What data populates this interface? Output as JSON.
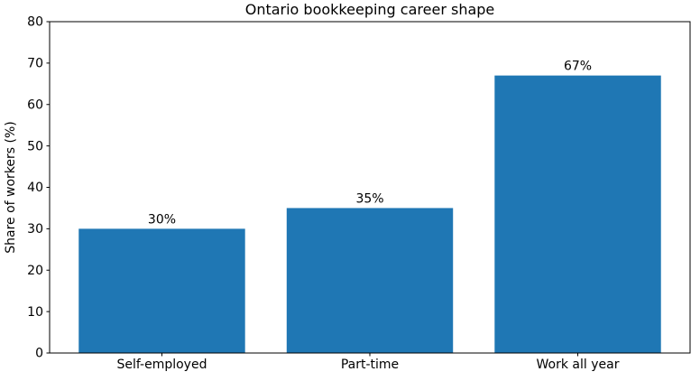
{
  "chart_data": {
    "type": "bar",
    "title": "Ontario bookkeeping career shape",
    "categories": [
      "Self-employed",
      "Part-time",
      "Work all year"
    ],
    "values": [
      30,
      35,
      67
    ],
    "value_labels": [
      "30%",
      "35%",
      "67%"
    ],
    "xlabel": "",
    "ylabel": "Share of workers (%)",
    "ylim": [
      0,
      80
    ],
    "yticks": [
      0,
      10,
      20,
      30,
      40,
      50,
      60,
      70,
      80
    ],
    "ytick_labels": [
      "0",
      "10",
      "20",
      "30",
      "40",
      "50",
      "60",
      "70",
      "80"
    ],
    "bar_color": "#1f77b4",
    "axis_color": "#000000",
    "text_color": "#000000",
    "background": "#ffffff",
    "grid": false,
    "legend": null
  }
}
